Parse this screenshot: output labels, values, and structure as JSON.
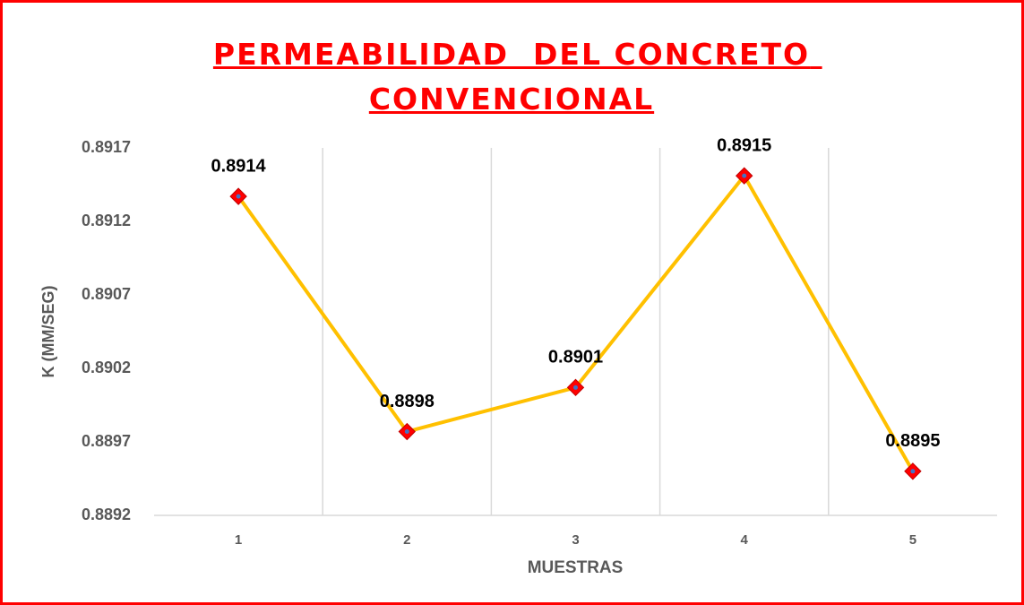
{
  "chart_data": {
    "type": "line",
    "title": "PERMEABILIDAD  DEL CONCRETO CONVENCIONAL",
    "x_label": "MUESTRAS",
    "y_label": "K (MM/SEG)",
    "categories": [
      "1",
      "2",
      "3",
      "4",
      "5"
    ],
    "series": [
      {
        "name": "K",
        "color": "#ffc000",
        "marker_color": "#ff0000",
        "values": [
          0.89137,
          0.88977,
          0.89007,
          0.89151,
          0.8895
        ],
        "value_labels": [
          "0.8914",
          "0.8898",
          "0.8901",
          "0.8915",
          "0.8895"
        ]
      }
    ],
    "ylim": [
      0.8892,
      0.8917
    ],
    "yticks": [
      0.8892,
      0.8897,
      0.8902,
      0.8907,
      0.8912,
      0.8917
    ],
    "grid": true
  }
}
